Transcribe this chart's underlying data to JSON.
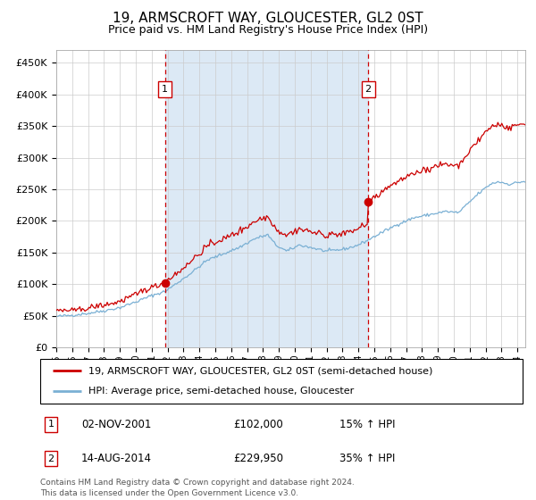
{
  "title": "19, ARMSCROFT WAY, GLOUCESTER, GL2 0ST",
  "subtitle": "Price paid vs. HM Land Registry's House Price Index (HPI)",
  "legend_line1": "19, ARMSCROFT WAY, GLOUCESTER, GL2 0ST (semi-detached house)",
  "legend_line2": "HPI: Average price, semi-detached house, Gloucester",
  "sale1_date": "02-NOV-2001",
  "sale1_price": 102000,
  "sale1_label": "15% ↑ HPI",
  "sale2_date": "14-AUG-2014",
  "sale2_price": 229950,
  "sale2_label": "35% ↑ HPI",
  "footnote1": "Contains HM Land Registry data © Crown copyright and database right 2024.",
  "footnote2": "This data is licensed under the Open Government Licence v3.0.",
  "ylim": [
    0,
    470000
  ],
  "yticks": [
    0,
    50000,
    100000,
    150000,
    200000,
    250000,
    300000,
    350000,
    400000,
    450000
  ],
  "ytick_labels": [
    "£0",
    "£50K",
    "£100K",
    "£150K",
    "£200K",
    "£250K",
    "£300K",
    "£350K",
    "£400K",
    "£450K"
  ],
  "bg_color": "#dce9f5",
  "plot_bg": "#ffffff",
  "line_color_red": "#cc0000",
  "line_color_blue": "#7ab0d4",
  "marker_color": "#cc0000",
  "vline_color": "#cc0000",
  "sale1_x": 2001.83,
  "sale2_x": 2014.62,
  "xmin": 1995.0,
  "xmax": 2024.5,
  "grid_color": "#cccccc",
  "title_fontsize": 11,
  "subtitle_fontsize": 9
}
